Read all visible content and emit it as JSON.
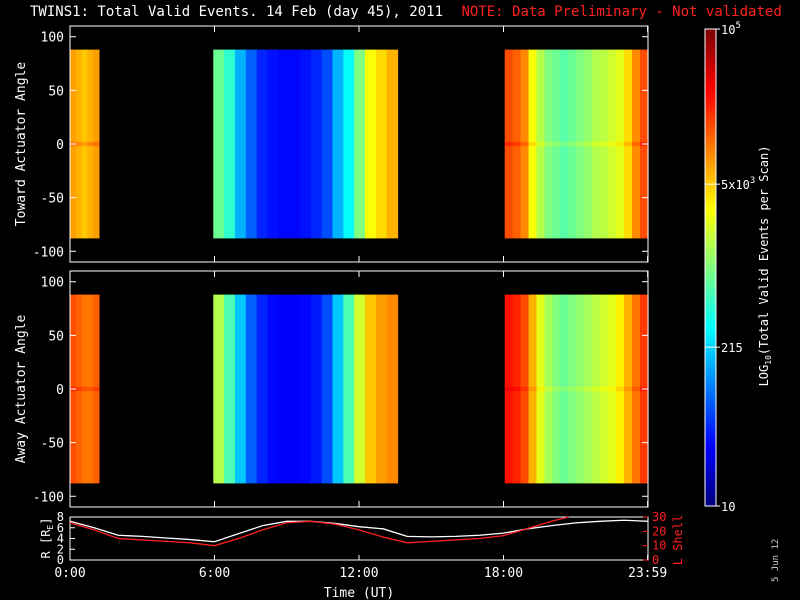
{
  "header": {
    "title": "TWINS1: Total Valid Events. 14 Feb (day  45), 2011",
    "note": "NOTE: Data Preliminary - Not validated"
  },
  "stamp": "5 Jun 12",
  "colors": {
    "background": "#000000",
    "frame": "#ffffff",
    "note": "#ff2020",
    "r_line": "#ffffff",
    "lshell_line": "#ff2020"
  },
  "chart_data": [
    {
      "type": "heatmap",
      "panel": "toward",
      "ylabel": "Toward Actuator Angle",
      "xlim": [
        0,
        24
      ],
      "ylim": [
        -110,
        110
      ],
      "yticks": [
        -100,
        -50,
        0,
        50,
        100
      ],
      "y_extent": [
        -88,
        88
      ],
      "value_scale": "log",
      "segments": [
        {
          "t0": 0.0,
          "t1": 1.2,
          "levels": [
            0.72,
            0.7,
            0.68,
            0.7,
            0.72
          ],
          "center_boost": 0.06
        },
        {
          "t0": 5.95,
          "t1": 13.6,
          "levels": [
            0.48,
            0.42,
            0.3,
            0.22,
            0.16,
            0.14,
            0.13,
            0.13,
            0.14,
            0.16,
            0.2,
            0.3,
            0.38,
            0.5,
            0.62,
            0.66,
            0.7
          ],
          "center_boost": 0.0
        },
        {
          "t0": 18.05,
          "t1": 24.0,
          "levels": [
            0.8,
            0.78,
            0.74,
            0.62,
            0.55,
            0.5,
            0.48,
            0.46,
            0.48,
            0.5,
            0.52,
            0.55,
            0.56,
            0.58,
            0.6,
            0.66,
            0.74,
            0.8
          ],
          "center_boost": 0.05
        }
      ]
    },
    {
      "type": "heatmap",
      "panel": "away",
      "ylabel": "Away Actuator Angle",
      "xlim": [
        0,
        24
      ],
      "ylim": [
        -110,
        110
      ],
      "yticks": [
        -100,
        -50,
        0,
        50,
        100
      ],
      "y_extent": [
        -88,
        88
      ],
      "value_scale": "log",
      "segments": [
        {
          "t0": 0.0,
          "t1": 1.2,
          "levels": [
            0.8,
            0.78,
            0.76,
            0.76,
            0.78
          ],
          "center_boost": 0.05
        },
        {
          "t0": 5.95,
          "t1": 13.6,
          "levels": [
            0.55,
            0.45,
            0.32,
            0.22,
            0.16,
            0.13,
            0.12,
            0.12,
            0.13,
            0.15,
            0.2,
            0.32,
            0.45,
            0.58,
            0.68,
            0.72,
            0.74
          ],
          "center_boost": 0.0
        },
        {
          "t0": 18.05,
          "t1": 24.0,
          "levels": [
            0.86,
            0.84,
            0.8,
            0.7,
            0.6,
            0.54,
            0.5,
            0.48,
            0.5,
            0.52,
            0.54,
            0.56,
            0.58,
            0.6,
            0.64,
            0.7,
            0.76,
            0.82
          ],
          "center_boost": 0.04
        }
      ]
    },
    {
      "type": "line",
      "panel": "orbit",
      "ylabel_left": "R [RE]",
      "ylabel_right": "L Shell",
      "xlabel": "Time (UT)",
      "xticks": [
        "0:00",
        "6:00",
        "12:00",
        "18:00",
        "23:59"
      ],
      "xtick_values": [
        0,
        6,
        12,
        18,
        23.983
      ],
      "xlim": [
        0,
        24
      ],
      "ylim_left": [
        0,
        8
      ],
      "yticks_left": [
        0,
        2,
        4,
        6,
        8
      ],
      "ylim_right": [
        0,
        30
      ],
      "yticks_right": [
        0,
        10,
        20,
        30
      ],
      "series": [
        {
          "axis": "left",
          "x": [
            0,
            1,
            2,
            3,
            4,
            5,
            6,
            7,
            8,
            9,
            10,
            11,
            12,
            13,
            14,
            15,
            16,
            17,
            18,
            19,
            20,
            21,
            22,
            23,
            24
          ],
          "values": [
            7.2,
            6.0,
            4.6,
            4.4,
            4.1,
            3.8,
            3.4,
            4.9,
            6.4,
            7.2,
            7.2,
            6.8,
            6.2,
            5.8,
            4.4,
            4.3,
            4.4,
            4.6,
            5.0,
            5.8,
            6.4,
            6.9,
            7.2,
            7.4,
            7.2
          ]
        },
        {
          "axis": "right",
          "x": [
            0,
            1,
            2,
            3,
            4,
            5,
            6,
            7,
            8,
            9,
            10,
            11,
            12,
            13,
            14,
            15,
            16,
            17,
            18,
            19,
            20,
            20.7
          ],
          "values": [
            26,
            21,
            15,
            14,
            13,
            12,
            10,
            15,
            21,
            26,
            27,
            25,
            21,
            16,
            12,
            13,
            14,
            15,
            17,
            22,
            27,
            32
          ]
        }
      ]
    },
    {
      "type": "colorbar",
      "label": "LOG10(Total Valid Events per Scan)",
      "tick_labels": [
        "10",
        "215",
        "5x10^3",
        "10^5"
      ],
      "tick_values": [
        1,
        2.332,
        3.699,
        5
      ],
      "range": [
        1,
        5
      ],
      "scale": "log"
    }
  ]
}
